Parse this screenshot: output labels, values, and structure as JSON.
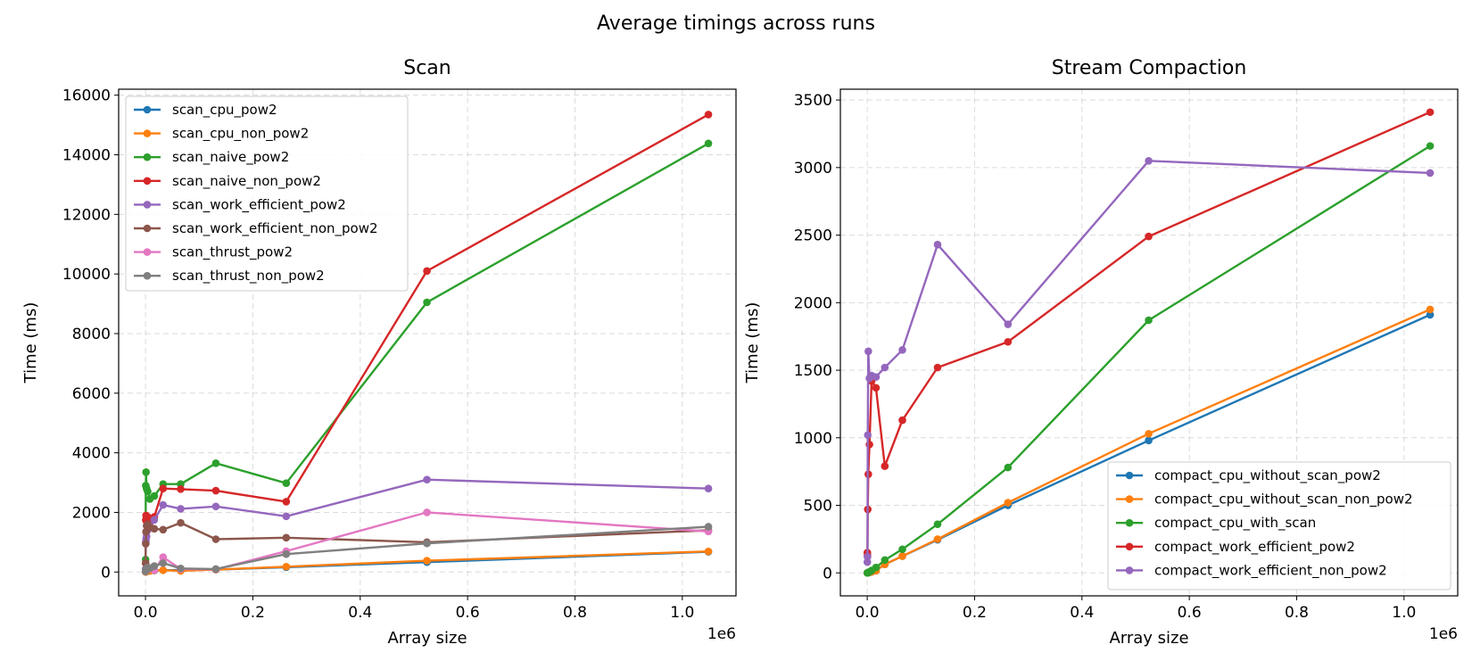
{
  "figure": {
    "title": "Average timings across runs"
  },
  "chart_data": [
    {
      "type": "line",
      "title": "Scan",
      "xlabel": "Array size",
      "ylabel": "Time (ms)",
      "x_offset_label": "1e6",
      "xlim": [
        -50000,
        1100000
      ],
      "ylim": [
        -800,
        16200
      ],
      "xticks": [
        0,
        200000,
        400000,
        600000,
        800000,
        1000000
      ],
      "xtick_labels": [
        "0.0",
        "0.2",
        "0.4",
        "0.6",
        "0.8",
        "1.0"
      ],
      "yticks": [
        0,
        2000,
        4000,
        6000,
        8000,
        10000,
        12000,
        14000,
        16000
      ],
      "ytick_labels": [
        "0",
        "2000",
        "4000",
        "6000",
        "8000",
        "10000",
        "12000",
        "14000",
        "16000"
      ],
      "grid": true,
      "legend_position": "top-left",
      "x": [
        256,
        512,
        1024,
        2048,
        4096,
        8192,
        16384,
        32768,
        65536,
        131072,
        262144,
        524288,
        1048576
      ],
      "series": [
        {
          "name": "scan_cpu_pow2",
          "color": "#1f77b4",
          "values": [
            5,
            8,
            10,
            20,
            30,
            40,
            50,
            60,
            70,
            80,
            160,
            330,
            680
          ]
        },
        {
          "name": "scan_cpu_non_pow2",
          "color": "#ff7f0e",
          "values": [
            5,
            8,
            10,
            20,
            30,
            40,
            55,
            60,
            40,
            80,
            180,
            380,
            690
          ]
        },
        {
          "name": "scan_naive_pow2",
          "color": "#2ca02c",
          "values": [
            420,
            2900,
            3350,
            2800,
            2700,
            2450,
            2550,
            2950,
            2950,
            3650,
            2980,
            9050,
            14380
          ]
        },
        {
          "name": "scan_naive_non_pow2",
          "color": "#d62728",
          "values": [
            300,
            1750,
            1900,
            1700,
            1850,
            1650,
            1850,
            2800,
            2780,
            2730,
            2360,
            10100,
            15350
          ]
        },
        {
          "name": "scan_work_efficient_pow2",
          "color": "#9467bd",
          "values": [
            100,
            1000,
            1100,
            1200,
            1400,
            1500,
            1750,
            2250,
            2120,
            2200,
            1870,
            3100,
            2800
          ]
        },
        {
          "name": "scan_work_efficient_non_pow2",
          "color": "#8c564b",
          "values": [
            300,
            950,
            1350,
            1550,
            1600,
            1500,
            1450,
            1420,
            1650,
            1100,
            1150,
            1000,
            1400
          ]
        },
        {
          "name": "scan_thrust_pow2",
          "color": "#e377c2",
          "values": [
            20,
            60,
            80,
            100,
            150,
            120,
            60,
            500,
            100,
            90,
            700,
            2000,
            1360
          ]
        },
        {
          "name": "scan_thrust_non_pow2",
          "color": "#7f7f7f",
          "values": [
            20,
            60,
            80,
            100,
            150,
            130,
            200,
            300,
            120,
            100,
            600,
            960,
            1520
          ]
        }
      ]
    },
    {
      "type": "line",
      "title": "Stream Compaction",
      "xlabel": "Array size",
      "ylabel": "Time (ms)",
      "x_offset_label": "1e6",
      "xlim": [
        -50000,
        1100000
      ],
      "ylim": [
        -170,
        3580
      ],
      "xticks": [
        0,
        200000,
        400000,
        600000,
        800000,
        1000000
      ],
      "xtick_labels": [
        "0.0",
        "0.2",
        "0.4",
        "0.6",
        "0.8",
        "1.0"
      ],
      "yticks": [
        0,
        500,
        1000,
        1500,
        2000,
        2500,
        3000,
        3500
      ],
      "ytick_labels": [
        "0",
        "500",
        "1000",
        "1500",
        "2000",
        "2500",
        "3000",
        "3500"
      ],
      "grid": true,
      "legend_position": "lower-right",
      "x": [
        256,
        512,
        1024,
        2048,
        4096,
        8192,
        16384,
        32768,
        65536,
        131072,
        262144,
        524288,
        1048576
      ],
      "series": [
        {
          "name": "compact_cpu_without_scan_pow2",
          "color": "#1f77b4",
          "values": [
            0,
            0,
            1,
            2,
            4,
            8,
            16,
            63,
            124,
            245,
            500,
            980,
            1910
          ]
        },
        {
          "name": "compact_cpu_without_scan_non_pow2",
          "color": "#ff7f0e",
          "values": [
            0,
            0,
            1,
            2,
            4,
            8,
            16,
            63,
            124,
            250,
            520,
            1030,
            1950
          ]
        },
        {
          "name": "compact_cpu_with_scan",
          "color": "#2ca02c",
          "values": [
            0,
            0,
            2,
            4,
            8,
            18,
            40,
            95,
            175,
            360,
            780,
            1870,
            3160
          ]
        },
        {
          "name": "compact_work_efficient_pow2",
          "color": "#d62728",
          "values": [
            150,
            130,
            470,
            730,
            950,
            1420,
            1370,
            790,
            1130,
            1520,
            1710,
            2490,
            3410
          ]
        },
        {
          "name": "compact_work_efficient_non_pow2",
          "color": "#9467bd",
          "values": [
            80,
            120,
            1020,
            1640,
            1440,
            1460,
            1450,
            1520,
            1650,
            2430,
            1840,
            3050,
            2960
          ]
        }
      ]
    }
  ]
}
